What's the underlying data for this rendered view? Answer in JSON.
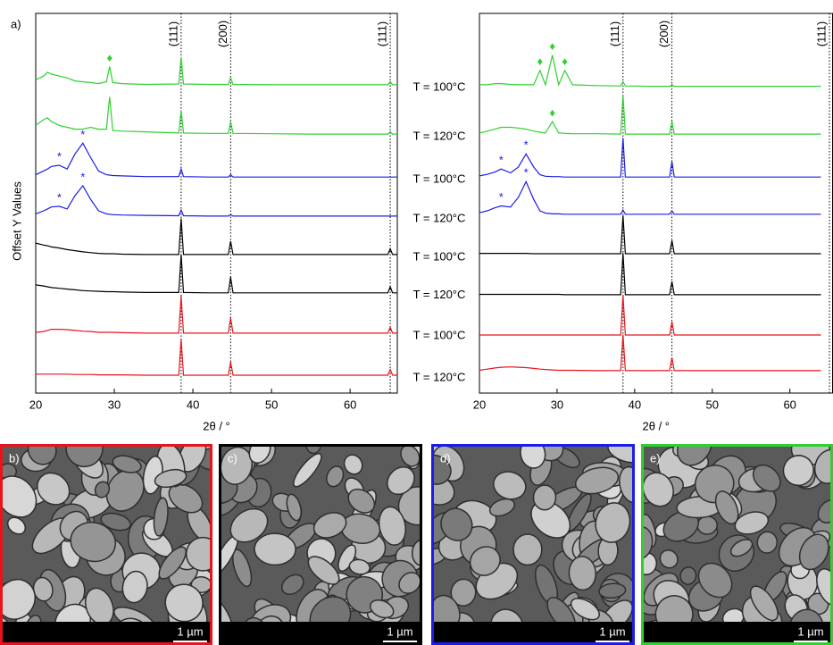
{
  "chart_data": [
    {
      "type": "line",
      "panel_label": "a)",
      "ylabel": "Offset Y Values",
      "xlabel": "2θ / °",
      "xlim": [
        20,
        66
      ],
      "ylim": [
        0,
        10
      ],
      "xticks": [
        20,
        30,
        40,
        50,
        60
      ],
      "x": [
        20,
        21,
        21.5,
        22,
        23,
        24,
        25,
        26,
        27,
        28,
        29,
        29.4,
        29.8,
        31,
        34,
        38.2,
        38.5,
        38.8,
        42,
        44.5,
        44.8,
        45.1,
        50,
        55,
        60,
        64.8,
        65.1,
        65.4,
        66
      ],
      "reflections": [
        {
          "x": 38.5,
          "label": "(111)"
        },
        {
          "x": 44.8,
          "label": "(200)"
        },
        {
          "x": 65.1,
          "label": "(111)"
        }
      ],
      "series": [
        {
          "name": "T = 100°C",
          "color": "#2fd12f",
          "values": [
            8.25,
            8.35,
            8.45,
            8.4,
            8.35,
            8.3,
            8.22,
            8.2,
            8.18,
            8.15,
            8.2,
            8.6,
            8.18,
            8.15,
            8.13,
            8.14,
            8.85,
            8.14,
            8.13,
            8.13,
            8.3,
            8.13,
            8.12,
            8.12,
            8.12,
            8.12,
            8.2,
            8.12,
            8.12
          ]
        },
        {
          "name": "T = 120°C",
          "color": "#2fd12f",
          "values": [
            7.05,
            7.2,
            7.25,
            7.15,
            7.05,
            7.0,
            6.95,
            6.95,
            7.0,
            6.95,
            6.95,
            7.8,
            6.92,
            6.9,
            6.88,
            6.85,
            7.45,
            6.85,
            6.84,
            6.84,
            7.15,
            6.84,
            6.83,
            6.82,
            6.82,
            6.82,
            6.88,
            6.82,
            6.82
          ]
        },
        {
          "name": "T = 100°C",
          "color": "#1c1ce8",
          "values": [
            5.75,
            5.85,
            5.9,
            5.97,
            6.0,
            5.9,
            6.3,
            6.58,
            6.2,
            5.85,
            5.75,
            5.74,
            5.73,
            5.72,
            5.7,
            5.7,
            5.9,
            5.7,
            5.69,
            5.69,
            5.75,
            5.69,
            5.69,
            5.69,
            5.69,
            5.69,
            5.69,
            5.69,
            5.69
          ]
        },
        {
          "name": "T = 120°C",
          "color": "#1c1ce8",
          "values": [
            4.72,
            4.8,
            4.85,
            4.9,
            4.92,
            4.85,
            5.2,
            5.46,
            5.1,
            4.8,
            4.72,
            4.71,
            4.7,
            4.69,
            4.68,
            4.67,
            4.82,
            4.67,
            4.66,
            4.66,
            4.7,
            4.66,
            4.66,
            4.66,
            4.66,
            4.66,
            4.66,
            4.66,
            4.66
          ]
        },
        {
          "name": "T = 100°C",
          "color": "#000000",
          "values": [
            3.95,
            3.9,
            3.88,
            3.85,
            3.82,
            3.78,
            3.75,
            3.72,
            3.7,
            3.68,
            3.67,
            3.67,
            3.67,
            3.66,
            3.65,
            3.65,
            4.6,
            3.65,
            3.65,
            3.65,
            4.0,
            3.65,
            3.65,
            3.65,
            3.65,
            3.65,
            3.8,
            3.65,
            3.65
          ]
        },
        {
          "name": "T = 120°C",
          "color": "#000000",
          "values": [
            2.85,
            2.82,
            2.8,
            2.78,
            2.76,
            2.74,
            2.72,
            2.7,
            2.69,
            2.68,
            2.67,
            2.67,
            2.67,
            2.66,
            2.65,
            2.65,
            3.65,
            2.65,
            2.64,
            2.64,
            3.05,
            2.64,
            2.64,
            2.64,
            2.64,
            2.64,
            2.8,
            2.64,
            2.64
          ]
        },
        {
          "name": "T = 100°C",
          "color": "#e8141c",
          "values": [
            1.6,
            1.62,
            1.65,
            1.68,
            1.68,
            1.67,
            1.65,
            1.63,
            1.62,
            1.6,
            1.6,
            1.6,
            1.6,
            1.59,
            1.58,
            1.58,
            2.55,
            1.58,
            1.58,
            1.58,
            1.98,
            1.58,
            1.58,
            1.58,
            1.58,
            1.58,
            1.73,
            1.58,
            1.58
          ]
        },
        {
          "name": "T = 120°C",
          "color": "#e8141c",
          "values": [
            0.5,
            0.5,
            0.5,
            0.5,
            0.5,
            0.5,
            0.49,
            0.49,
            0.49,
            0.48,
            0.48,
            0.48,
            0.48,
            0.48,
            0.47,
            0.47,
            1.42,
            0.47,
            0.47,
            0.47,
            0.82,
            0.47,
            0.47,
            0.47,
            0.47,
            0.47,
            0.62,
            0.47,
            0.47
          ]
        }
      ],
      "markers": [
        {
          "text": "♦",
          "series": 0,
          "x": 29.4
        },
        {
          "text": "*",
          "series": 2,
          "x": 23
        },
        {
          "text": "*",
          "series": 2,
          "x": 26
        },
        {
          "text": "*",
          "series": 3,
          "x": 23
        },
        {
          "text": "*",
          "series": 3,
          "x": 26
        }
      ]
    },
    {
      "type": "line",
      "xlabel": "2θ / °",
      "xlim": [
        20,
        65.5
      ],
      "ylim": [
        0,
        10
      ],
      "xticks": [
        20,
        30,
        40,
        50,
        60
      ],
      "x": [
        20,
        21,
        22,
        22.8,
        24,
        25,
        26,
        27,
        27.8,
        28.5,
        29.4,
        30.2,
        31,
        32,
        35,
        38.2,
        38.5,
        38.8,
        42,
        44.5,
        44.8,
        45.1,
        50,
        55,
        60,
        64
      ],
      "reflections": [
        {
          "x": 38.5,
          "label": "(111)"
        },
        {
          "x": 44.8,
          "label": "(200)"
        },
        {
          "x": 65.1,
          "label": "(111)"
        }
      ],
      "series": [
        {
          "color": "#2fd12f",
          "values": [
            8.12,
            8.12,
            8.15,
            8.15,
            8.13,
            8.12,
            8.12,
            8.12,
            8.5,
            8.12,
            8.9,
            8.12,
            8.5,
            8.12,
            8.1,
            8.09,
            8.2,
            8.09,
            8.08,
            8.08,
            8.12,
            8.08,
            8.08,
            8.08,
            8.08,
            8.08
          ]
        },
        {
          "color": "#2fd12f",
          "values": [
            6.85,
            6.9,
            6.95,
            7.0,
            7.0,
            6.98,
            6.95,
            6.9,
            6.87,
            6.85,
            7.15,
            6.85,
            6.84,
            6.83,
            6.83,
            6.82,
            7.85,
            6.82,
            6.82,
            6.82,
            7.17,
            6.82,
            6.82,
            6.82,
            6.82,
            6.82
          ]
        },
        {
          "color": "#1c1ce8",
          "values": [
            5.72,
            5.76,
            5.82,
            5.9,
            5.8,
            5.95,
            6.3,
            5.95,
            5.75,
            5.71,
            5.7,
            5.7,
            5.69,
            5.69,
            5.69,
            5.69,
            6.72,
            5.69,
            5.69,
            5.69,
            6.1,
            5.69,
            5.69,
            5.69,
            5.69,
            5.69
          ]
        },
        {
          "color": "#1c1ce8",
          "values": [
            4.75,
            4.8,
            4.88,
            4.93,
            4.9,
            5.15,
            5.57,
            5.1,
            4.8,
            4.74,
            4.72,
            4.72,
            4.71,
            4.71,
            4.71,
            4.71,
            4.82,
            4.71,
            4.71,
            4.71,
            4.8,
            4.71,
            4.71,
            4.71,
            4.71,
            4.71
          ]
        },
        {
          "color": "#000000",
          "values": [
            3.68,
            3.68,
            3.68,
            3.68,
            3.68,
            3.68,
            3.68,
            3.67,
            3.67,
            3.67,
            3.67,
            3.67,
            3.67,
            3.67,
            3.67,
            3.67,
            4.68,
            3.67,
            3.67,
            3.67,
            4.02,
            3.67,
            3.67,
            3.67,
            3.67,
            3.67
          ]
        },
        {
          "color": "#000000",
          "values": [
            2.6,
            2.6,
            2.6,
            2.6,
            2.6,
            2.6,
            2.6,
            2.6,
            2.6,
            2.6,
            2.6,
            2.6,
            2.59,
            2.59,
            2.59,
            2.59,
            3.69,
            2.59,
            2.59,
            2.59,
            2.94,
            2.59,
            2.59,
            2.59,
            2.59,
            2.59
          ]
        },
        {
          "color": "#e8141c",
          "values": [
            1.53,
            1.53,
            1.53,
            1.53,
            1.53,
            1.53,
            1.53,
            1.53,
            1.53,
            1.53,
            1.53,
            1.53,
            1.53,
            1.53,
            1.53,
            1.53,
            2.58,
            1.53,
            1.53,
            1.53,
            1.88,
            1.53,
            1.53,
            1.53,
            1.53,
            1.53
          ]
        },
        {
          "color": "#e8141c",
          "values": [
            0.6,
            0.63,
            0.66,
            0.68,
            0.69,
            0.68,
            0.67,
            0.65,
            0.63,
            0.62,
            0.61,
            0.6,
            0.6,
            0.6,
            0.59,
            0.59,
            1.54,
            0.59,
            0.59,
            0.59,
            0.94,
            0.59,
            0.59,
            0.59,
            0.59,
            0.59
          ]
        }
      ],
      "markers": [
        {
          "text": "♦",
          "series": 0,
          "x": 27.8
        },
        {
          "text": "♦",
          "series": 0,
          "x": 29.4
        },
        {
          "text": "♦",
          "series": 0,
          "x": 31
        },
        {
          "text": "♦",
          "series": 1,
          "x": 29.4
        },
        {
          "text": "*",
          "series": 2,
          "x": 22.8
        },
        {
          "text": "*",
          "series": 2,
          "x": 26
        },
        {
          "text": "*",
          "series": 3,
          "x": 22.8
        },
        {
          "text": "*",
          "series": 3,
          "x": 26
        }
      ]
    }
  ],
  "panels": [
    {
      "label": "b)",
      "scale_bar": "1 µm",
      "border": "#e8141c"
    },
    {
      "label": "c)",
      "scale_bar": "1 µm",
      "border": "#000000"
    },
    {
      "label": "d)",
      "scale_bar": "1 µm",
      "border": "#1c1ce8"
    },
    {
      "label": "e)",
      "scale_bar": "1 µm",
      "border": "#2fd12f"
    }
  ]
}
